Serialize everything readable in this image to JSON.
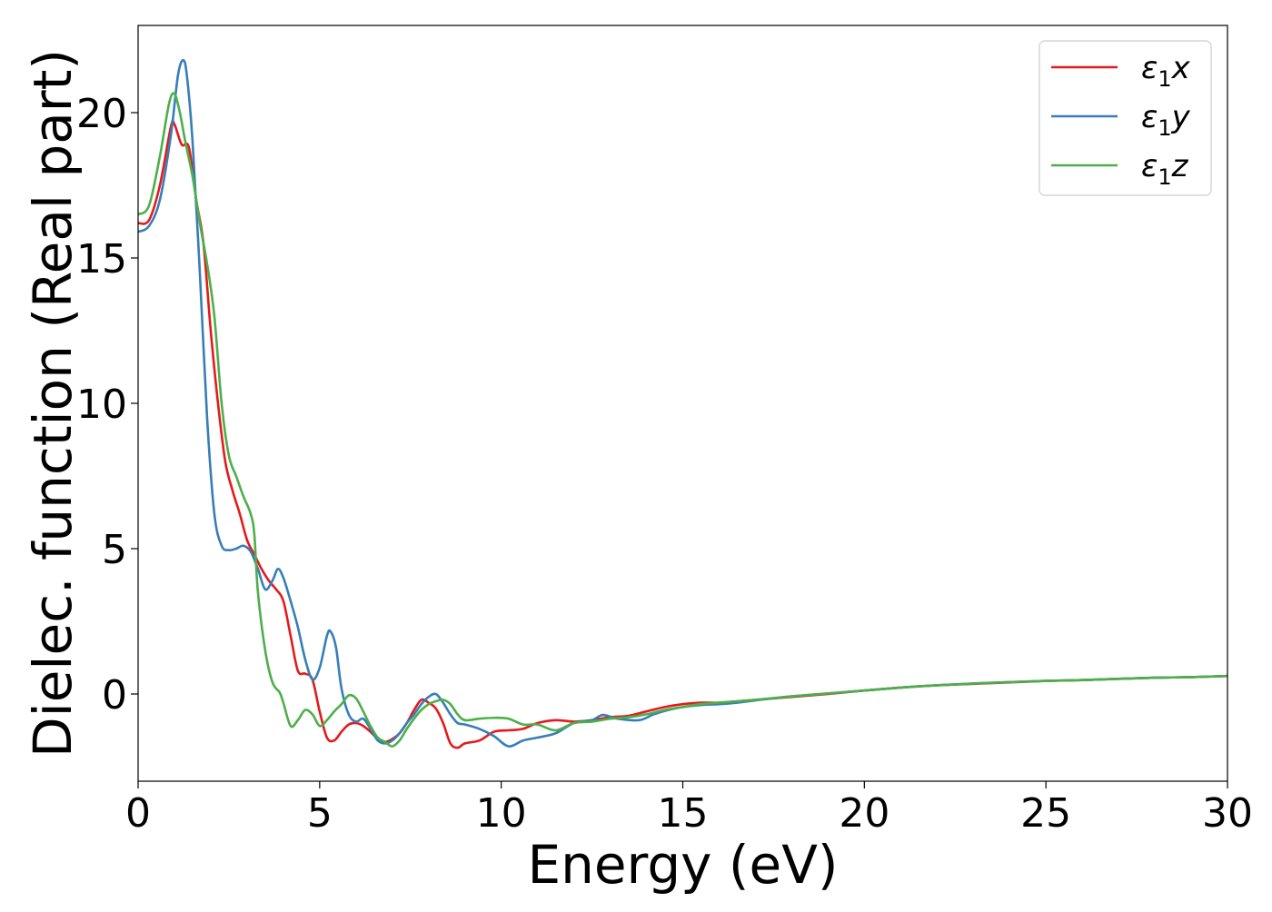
{
  "chart_data": {
    "type": "line",
    "xlabel": "Energy (eV)",
    "ylabel": "Dielec. function (Real part)",
    "xlim": [
      0,
      30
    ],
    "ylim": [
      -3,
      23
    ],
    "x_ticks": [
      "0",
      "5",
      "10",
      "15",
      "20",
      "25",
      "30"
    ],
    "y_ticks": [
      "0",
      "5",
      "10",
      "15",
      "20"
    ],
    "grid": false,
    "legend_position": "top-right",
    "series": [
      {
        "name": "ε₁x",
        "legend_base": "ε",
        "legend_sub": "1",
        "legend_suffix": "x",
        "color": "#e41a1c",
        "points": [
          [
            0,
            16.2
          ],
          [
            0.3,
            16.3
          ],
          [
            0.6,
            17.5
          ],
          [
            0.9,
            19.5
          ],
          [
            1.0,
            19.6
          ],
          [
            1.2,
            18.9
          ],
          [
            1.4,
            18.8
          ],
          [
            1.6,
            17.0
          ],
          [
            1.8,
            15.5
          ],
          [
            2.0,
            12.5
          ],
          [
            2.2,
            10.0
          ],
          [
            2.4,
            8.0
          ],
          [
            2.6,
            7.0
          ],
          [
            2.8,
            6.2
          ],
          [
            3.0,
            5.3
          ],
          [
            3.2,
            4.8
          ],
          [
            3.4,
            4.3
          ],
          [
            3.6,
            3.9
          ],
          [
            3.8,
            3.6
          ],
          [
            4.0,
            3.2
          ],
          [
            4.2,
            2.0
          ],
          [
            4.4,
            0.8
          ],
          [
            4.6,
            0.7
          ],
          [
            4.8,
            0.5
          ],
          [
            5.0,
            -0.6
          ],
          [
            5.2,
            -1.5
          ],
          [
            5.4,
            -1.6
          ],
          [
            5.6,
            -1.3
          ],
          [
            5.8,
            -1.05
          ],
          [
            6.0,
            -1.0
          ],
          [
            6.2,
            -1.1
          ],
          [
            6.4,
            -1.3
          ],
          [
            6.6,
            -1.55
          ],
          [
            6.8,
            -1.65
          ],
          [
            7.0,
            -1.55
          ],
          [
            7.2,
            -1.35
          ],
          [
            7.4,
            -1.0
          ],
          [
            7.6,
            -0.55
          ],
          [
            7.8,
            -0.2
          ],
          [
            8.0,
            -0.3
          ],
          [
            8.2,
            -0.5
          ],
          [
            8.4,
            -1.0
          ],
          [
            8.6,
            -1.7
          ],
          [
            8.8,
            -1.85
          ],
          [
            9.0,
            -1.7
          ],
          [
            9.4,
            -1.6
          ],
          [
            9.8,
            -1.3
          ],
          [
            10.2,
            -1.25
          ],
          [
            10.6,
            -1.2
          ],
          [
            11.0,
            -1.0
          ],
          [
            11.5,
            -0.9
          ],
          [
            12.0,
            -0.95
          ],
          [
            12.5,
            -0.9
          ],
          [
            13.0,
            -0.8
          ],
          [
            13.5,
            -0.75
          ],
          [
            14.0,
            -0.6
          ],
          [
            14.5,
            -0.45
          ],
          [
            15.0,
            -0.35
          ],
          [
            15.5,
            -0.3
          ],
          [
            16.0,
            -0.3
          ],
          [
            16.5,
            -0.25
          ],
          [
            17.0,
            -0.2
          ],
          [
            18.0,
            -0.1
          ],
          [
            19.0,
            0.0
          ],
          [
            20.0,
            0.12
          ],
          [
            21.0,
            0.22
          ],
          [
            22.0,
            0.3
          ],
          [
            23.0,
            0.35
          ],
          [
            24.0,
            0.4
          ],
          [
            25.0,
            0.45
          ],
          [
            26.0,
            0.48
          ],
          [
            27.0,
            0.52
          ],
          [
            28.0,
            0.56
          ],
          [
            29.0,
            0.58
          ],
          [
            30.0,
            0.62
          ]
        ]
      },
      {
        "name": "ε₁y",
        "legend_base": "ε",
        "legend_sub": "1",
        "legend_suffix": "y",
        "color": "#377eb8",
        "points": [
          [
            0,
            15.9
          ],
          [
            0.3,
            16.1
          ],
          [
            0.6,
            17.0
          ],
          [
            0.9,
            19.2
          ],
          [
            1.1,
            21.3
          ],
          [
            1.25,
            21.8
          ],
          [
            1.35,
            21.2
          ],
          [
            1.5,
            19.0
          ],
          [
            1.7,
            14.5
          ],
          [
            1.9,
            9.5
          ],
          [
            2.1,
            6.2
          ],
          [
            2.3,
            5.1
          ],
          [
            2.5,
            4.95
          ],
          [
            2.7,
            5.0
          ],
          [
            2.9,
            5.1
          ],
          [
            3.1,
            4.9
          ],
          [
            3.3,
            4.3
          ],
          [
            3.5,
            3.6
          ],
          [
            3.7,
            3.9
          ],
          [
            3.85,
            4.3
          ],
          [
            4.0,
            4.0
          ],
          [
            4.2,
            3.2
          ],
          [
            4.4,
            2.3
          ],
          [
            4.6,
            1.2
          ],
          [
            4.8,
            0.5
          ],
          [
            5.0,
            0.9
          ],
          [
            5.2,
            2.0
          ],
          [
            5.3,
            2.15
          ],
          [
            5.45,
            1.6
          ],
          [
            5.6,
            0.2
          ],
          [
            5.8,
            -0.7
          ],
          [
            6.0,
            -0.95
          ],
          [
            6.2,
            -0.85
          ],
          [
            6.4,
            -1.2
          ],
          [
            6.6,
            -1.6
          ],
          [
            6.8,
            -1.7
          ],
          [
            7.0,
            -1.6
          ],
          [
            7.2,
            -1.35
          ],
          [
            7.4,
            -1.0
          ],
          [
            7.6,
            -0.7
          ],
          [
            7.8,
            -0.35
          ],
          [
            8.0,
            -0.1
          ],
          [
            8.2,
            0.0
          ],
          [
            8.4,
            -0.3
          ],
          [
            8.6,
            -0.7
          ],
          [
            8.8,
            -1.0
          ],
          [
            9.0,
            -1.05
          ],
          [
            9.4,
            -1.2
          ],
          [
            9.8,
            -1.45
          ],
          [
            10.2,
            -1.8
          ],
          [
            10.6,
            -1.6
          ],
          [
            11.0,
            -1.5
          ],
          [
            11.5,
            -1.35
          ],
          [
            12.0,
            -1.0
          ],
          [
            12.5,
            -0.9
          ],
          [
            12.8,
            -0.72
          ],
          [
            13.2,
            -0.85
          ],
          [
            13.8,
            -0.9
          ],
          [
            14.2,
            -0.7
          ],
          [
            14.6,
            -0.55
          ],
          [
            15.0,
            -0.45
          ],
          [
            15.5,
            -0.38
          ],
          [
            16.0,
            -0.35
          ],
          [
            16.5,
            -0.3
          ],
          [
            17.0,
            -0.22
          ],
          [
            18.0,
            -0.08
          ],
          [
            19.0,
            0.02
          ],
          [
            20.0,
            0.12
          ],
          [
            21.0,
            0.22
          ],
          [
            22.0,
            0.3
          ],
          [
            23.0,
            0.36
          ],
          [
            24.0,
            0.41
          ],
          [
            25.0,
            0.45
          ],
          [
            26.0,
            0.48
          ],
          [
            27.0,
            0.52
          ],
          [
            28.0,
            0.56
          ],
          [
            29.0,
            0.58
          ],
          [
            30.0,
            0.62
          ]
        ]
      },
      {
        "name": "ε₁z",
        "legend_base": "ε",
        "legend_sub": "1",
        "legend_suffix": "z",
        "color": "#4daf4a",
        "points": [
          [
            0,
            16.5
          ],
          [
            0.3,
            16.8
          ],
          [
            0.6,
            18.5
          ],
          [
            0.85,
            20.3
          ],
          [
            1.0,
            20.65
          ],
          [
            1.15,
            20.0
          ],
          [
            1.3,
            19.0
          ],
          [
            1.5,
            17.8
          ],
          [
            1.7,
            16.2
          ],
          [
            1.9,
            14.8
          ],
          [
            2.1,
            13.0
          ],
          [
            2.3,
            10.0
          ],
          [
            2.5,
            8.2
          ],
          [
            2.7,
            7.5
          ],
          [
            2.9,
            6.8
          ],
          [
            3.1,
            6.2
          ],
          [
            3.2,
            5.5
          ],
          [
            3.3,
            3.5
          ],
          [
            3.5,
            1.5
          ],
          [
            3.7,
            0.4
          ],
          [
            3.9,
            0.05
          ],
          [
            4.0,
            -0.3
          ],
          [
            4.2,
            -1.1
          ],
          [
            4.4,
            -0.9
          ],
          [
            4.6,
            -0.55
          ],
          [
            4.8,
            -0.7
          ],
          [
            5.0,
            -1.1
          ],
          [
            5.2,
            -0.9
          ],
          [
            5.4,
            -0.6
          ],
          [
            5.6,
            -0.35
          ],
          [
            5.8,
            -0.05
          ],
          [
            6.0,
            -0.15
          ],
          [
            6.2,
            -0.6
          ],
          [
            6.4,
            -1.1
          ],
          [
            6.6,
            -1.5
          ],
          [
            6.8,
            -1.65
          ],
          [
            7.0,
            -1.8
          ],
          [
            7.2,
            -1.6
          ],
          [
            7.4,
            -1.2
          ],
          [
            7.6,
            -0.85
          ],
          [
            7.8,
            -0.55
          ],
          [
            8.0,
            -0.35
          ],
          [
            8.2,
            -0.25
          ],
          [
            8.4,
            -0.2
          ],
          [
            8.6,
            -0.35
          ],
          [
            8.8,
            -0.7
          ],
          [
            9.0,
            -0.9
          ],
          [
            9.4,
            -0.85
          ],
          [
            9.8,
            -0.82
          ],
          [
            10.2,
            -0.85
          ],
          [
            10.6,
            -1.05
          ],
          [
            11.0,
            -1.05
          ],
          [
            11.5,
            -1.25
          ],
          [
            12.0,
            -1.0
          ],
          [
            12.5,
            -0.95
          ],
          [
            13.0,
            -0.85
          ],
          [
            13.5,
            -0.8
          ],
          [
            14.0,
            -0.7
          ],
          [
            14.5,
            -0.55
          ],
          [
            15.0,
            -0.45
          ],
          [
            15.5,
            -0.35
          ],
          [
            16.0,
            -0.3
          ],
          [
            16.5,
            -0.25
          ],
          [
            17.0,
            -0.2
          ],
          [
            18.0,
            -0.08
          ],
          [
            19.0,
            0.02
          ],
          [
            20.0,
            0.12
          ],
          [
            21.0,
            0.22
          ],
          [
            22.0,
            0.3
          ],
          [
            23.0,
            0.36
          ],
          [
            24.0,
            0.41
          ],
          [
            25.0,
            0.45
          ],
          [
            26.0,
            0.48
          ],
          [
            27.0,
            0.52
          ],
          [
            28.0,
            0.56
          ],
          [
            29.0,
            0.58
          ],
          [
            30.0,
            0.62
          ]
        ]
      }
    ]
  }
}
